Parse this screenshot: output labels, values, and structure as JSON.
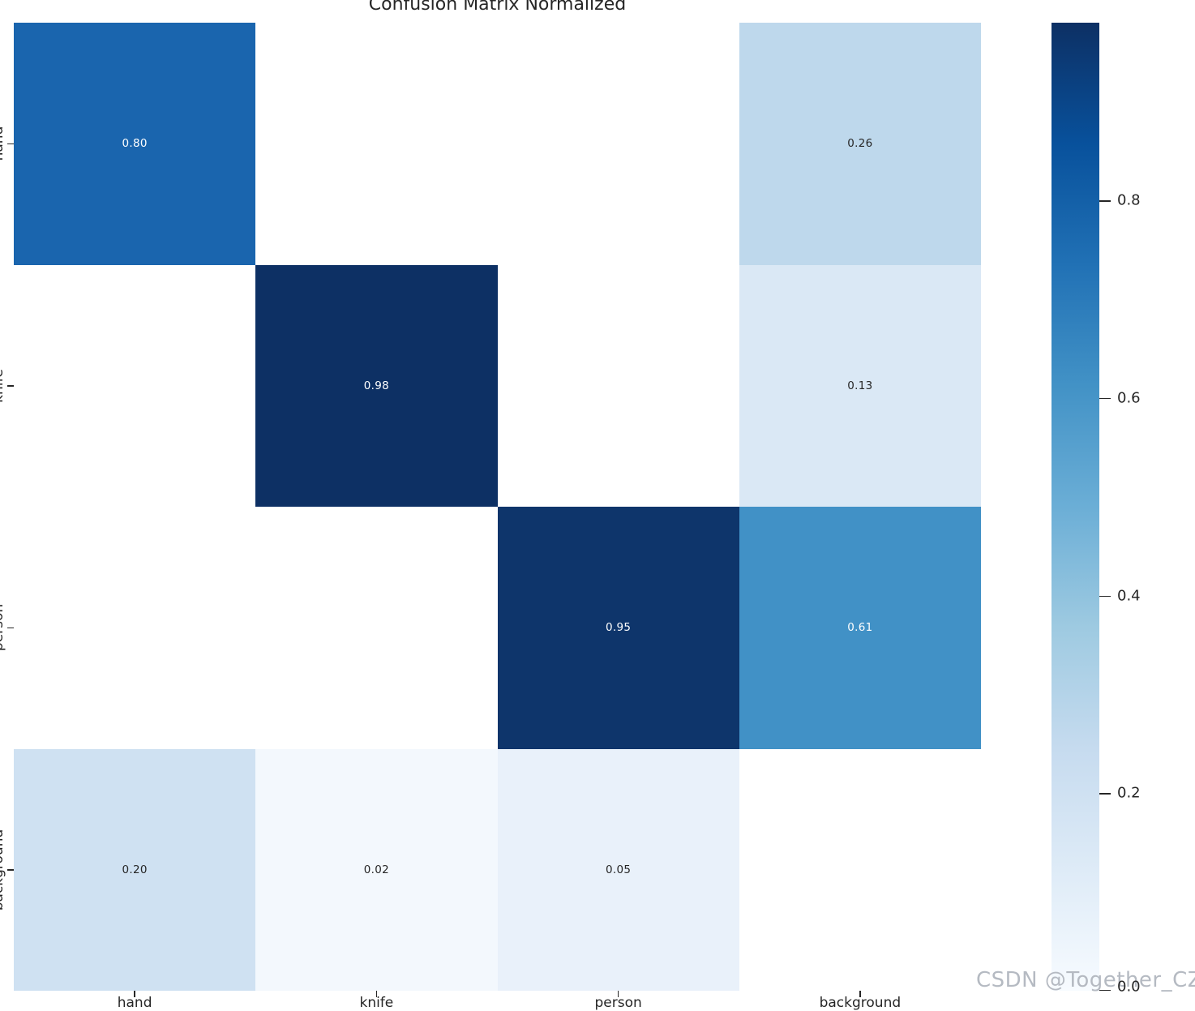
{
  "title": "Confusion Matrix Normalized",
  "watermark": {
    "text": "CSDN @Together_CZ",
    "color": "#b5bac2"
  },
  "chart_data": {
    "type": "heatmap",
    "title": "Confusion Matrix Normalized",
    "x_categories": [
      "hand",
      "knife",
      "person",
      "background"
    ],
    "y_categories": [
      "hand",
      "knife",
      "person",
      "background"
    ],
    "matrix": [
      [
        0.8,
        null,
        null,
        0.26
      ],
      [
        null,
        0.98,
        null,
        0.13
      ],
      [
        null,
        null,
        0.95,
        0.61
      ],
      [
        0.2,
        0.02,
        0.05,
        null
      ]
    ],
    "cell_colors": [
      [
        "#1a65ae",
        null,
        null,
        "#bed8ec"
      ],
      [
        null,
        "#0d3064",
        null,
        "#dae8f5"
      ],
      [
        null,
        null,
        "#0e356b",
        "#4191c6"
      ],
      [
        "#cfe1f2",
        "#f3f8fd",
        "#e9f1fa",
        null
      ]
    ],
    "annotation_light_text": "#ffffff",
    "annotation_dark_text": "#262626",
    "light_text_threshold": 0.5,
    "masked_cell_color": "#ffffff",
    "colormap": "Blues",
    "vmin": 0.0,
    "vmax": 0.98,
    "colorbar_position": "right",
    "colorbar_ticks": [
      0.8,
      0.6,
      0.4,
      0.2,
      0.0
    ],
    "colorbar_tick_labels": [
      "0.8",
      "0.6",
      "0.4",
      "0.2",
      "0.0"
    ],
    "colorbar_gradient_top_to_bottom": [
      "#0d3064",
      "#08519c",
      "#2171b5",
      "#4292c6",
      "#6baed6",
      "#9ecae1",
      "#c6dbef",
      "#deebf7",
      "#f7fbff"
    ],
    "grid": false,
    "x_axis_labels_cropped": true,
    "y_axis_labels_cropped": true
  }
}
